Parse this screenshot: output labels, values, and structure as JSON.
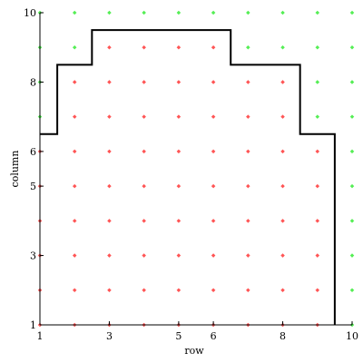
{
  "chart_data": {
    "type": "scatter",
    "title": "",
    "xlabel": "row",
    "ylabel": "column",
    "xlim": [
      1,
      10
    ],
    "ylim": [
      1,
      10
    ],
    "grid": false,
    "x_ticks": [
      1,
      3,
      5,
      6,
      8,
      10
    ],
    "y_ticks": [
      1,
      3,
      5,
      6,
      8,
      10
    ],
    "colors": {
      "inside": "#ff5555",
      "outside": "#55ee55",
      "boundary": "#000000",
      "axis": "#000000"
    },
    "grid_points": {
      "x": [
        1,
        2,
        3,
        4,
        5,
        6,
        7,
        8,
        9,
        10
      ],
      "y": [
        1,
        2,
        3,
        4,
        5,
        6,
        7,
        8,
        9,
        10
      ]
    },
    "column_height": [
      {
        "x": 1,
        "max_inside_y": 6
      },
      {
        "x": 2,
        "max_inside_y": 8
      },
      {
        "x": 3,
        "max_inside_y": 9
      },
      {
        "x": 4,
        "max_inside_y": 9
      },
      {
        "x": 5,
        "max_inside_y": 9
      },
      {
        "x": 6,
        "max_inside_y": 9
      },
      {
        "x": 7,
        "max_inside_y": 8
      },
      {
        "x": 8,
        "max_inside_y": 8
      },
      {
        "x": 9,
        "max_inside_y": 6
      },
      {
        "x": 10,
        "max_inside_y": 0
      }
    ],
    "boundary": [
      [
        1,
        6.5
      ],
      [
        1.5,
        6.5
      ],
      [
        1.5,
        8.5
      ],
      [
        2.5,
        8.5
      ],
      [
        2.5,
        9.5
      ],
      [
        6.5,
        9.5
      ],
      [
        6.5,
        8.5
      ],
      [
        8.5,
        8.5
      ],
      [
        8.5,
        6.5
      ],
      [
        9.5,
        6.5
      ],
      [
        9.5,
        1
      ]
    ]
  }
}
